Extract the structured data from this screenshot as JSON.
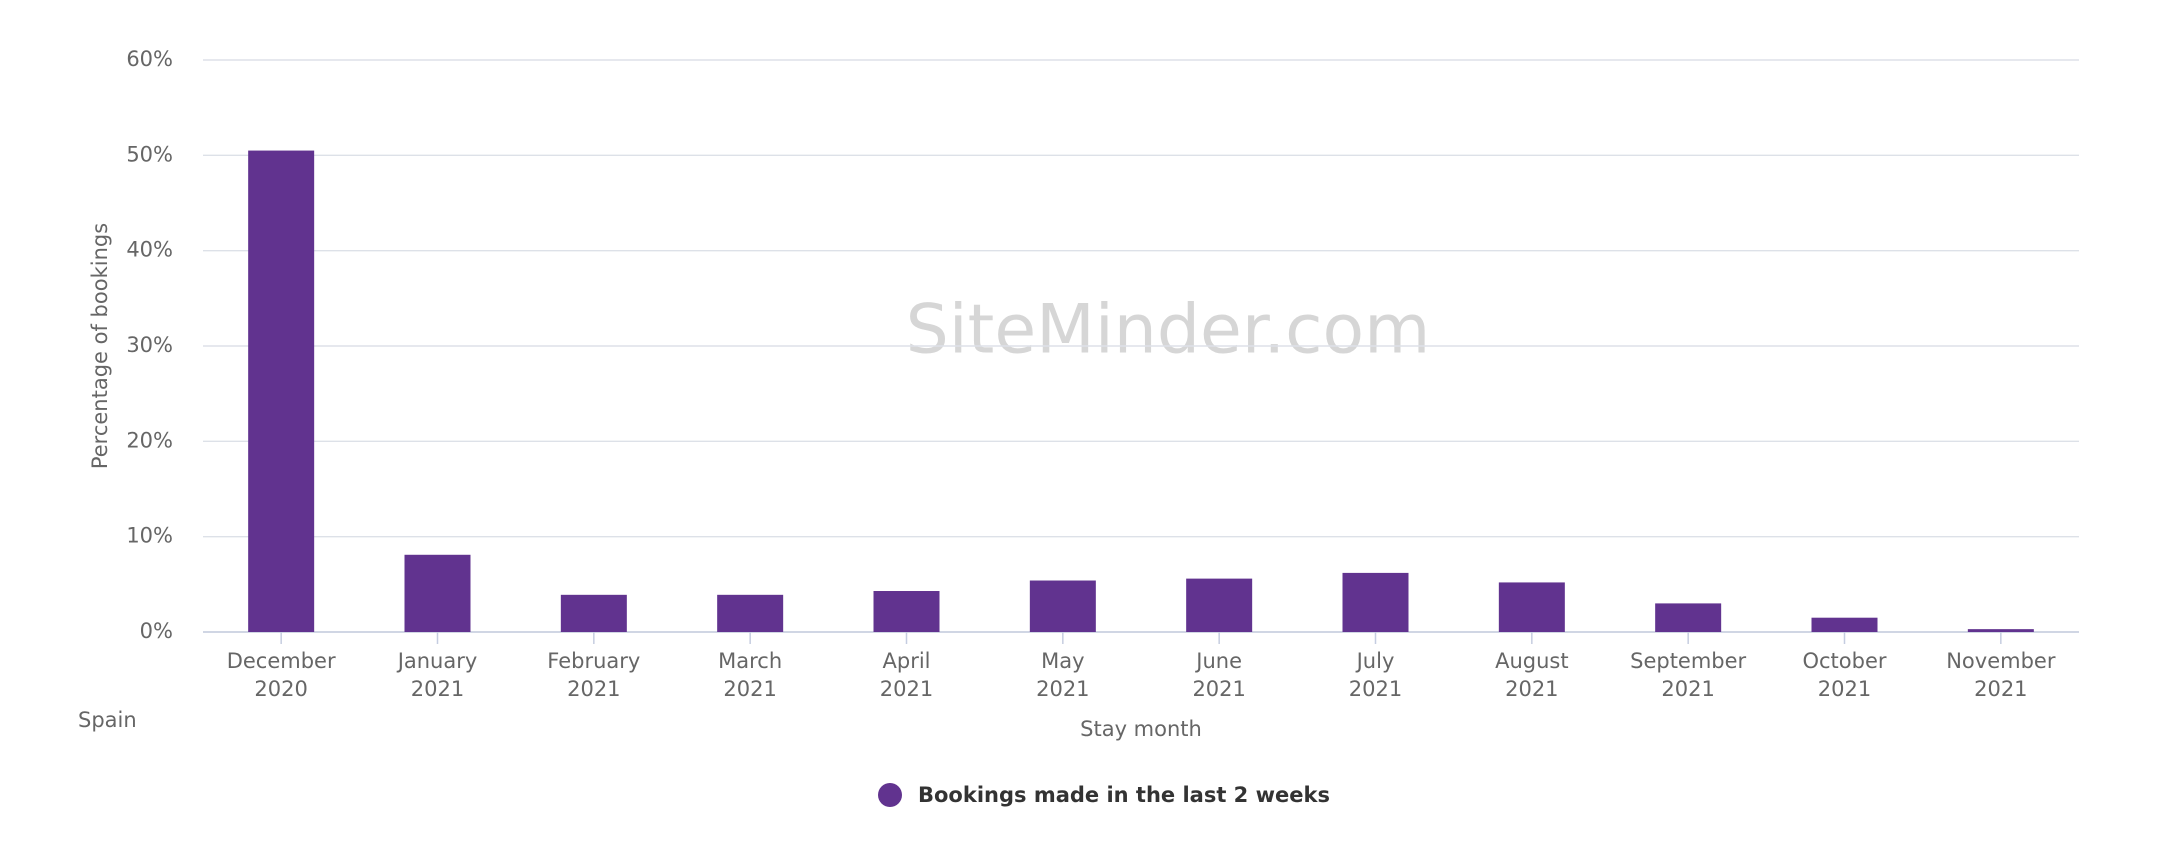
{
  "chart_data": {
    "type": "bar",
    "watermark": "SiteMinder.com",
    "region": "Spain",
    "x_label": "Stay month",
    "y_label": "Percentage of bookings",
    "categories": [
      "December 2020",
      "January 2021",
      "February 2021",
      "March 2021",
      "April 2021",
      "May 2021",
      "June 2021",
      "July 2021",
      "August 2021",
      "September 2021",
      "October 2021",
      "November 2021"
    ],
    "series": [
      {
        "name": "Bookings made in the last 2 weeks",
        "color": "#61338f",
        "values": [
          50.5,
          8.1,
          3.9,
          3.9,
          4.3,
          5.4,
          5.6,
          6.2,
          5.2,
          3.0,
          1.5,
          0.3
        ]
      }
    ],
    "ylim": [
      0,
      60
    ],
    "yticks": [
      {
        "value": 0,
        "label": "0%"
      },
      {
        "value": 10,
        "label": "10%"
      },
      {
        "value": 20,
        "label": "20%"
      },
      {
        "value": 30,
        "label": "30%"
      },
      {
        "value": 40,
        "label": "40%"
      },
      {
        "value": 50,
        "label": "50%"
      },
      {
        "value": 60,
        "label": "60%"
      }
    ],
    "grid": true
  }
}
